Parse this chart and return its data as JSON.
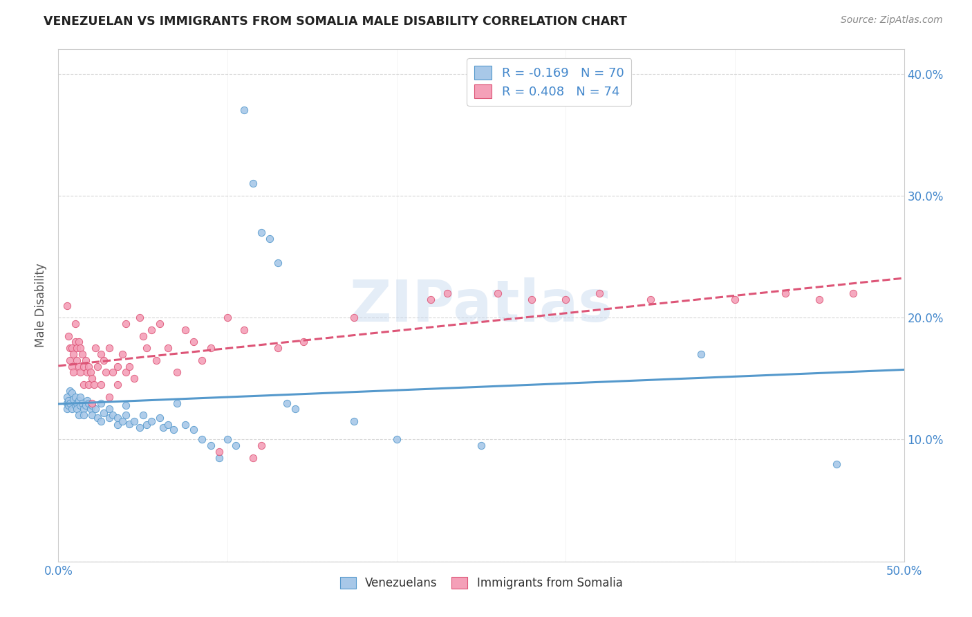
{
  "title": "VENEZUELAN VS IMMIGRANTS FROM SOMALIA MALE DISABILITY CORRELATION CHART",
  "source": "Source: ZipAtlas.com",
  "ylabel": "Male Disability",
  "x_min": 0.0,
  "x_max": 0.5,
  "y_min": 0.0,
  "y_max": 0.42,
  "x_ticks": [
    0.0,
    0.1,
    0.2,
    0.3,
    0.4,
    0.5
  ],
  "x_tick_labels": [
    "0.0%",
    "",
    "",
    "",
    "",
    "50.0%"
  ],
  "y_ticks": [
    0.0,
    0.1,
    0.2,
    0.3,
    0.4
  ],
  "y_tick_labels_right": [
    "",
    "10.0%",
    "20.0%",
    "30.0%",
    "40.0%"
  ],
  "venezuelan_color": "#a8c8e8",
  "somalia_color": "#f4a0b8",
  "venezuelan_edge_color": "#5599cc",
  "somalia_edge_color": "#dd5577",
  "venezuelan_line_color": "#5599cc",
  "somalia_line_color": "#dd5577",
  "R_venezuelan": -0.169,
  "N_venezuelan": 70,
  "R_somalia": 0.408,
  "N_somalia": 74,
  "watermark": "ZIPatlas",
  "legend_text_color": "#4488cc",
  "venezuelan_points": [
    [
      0.005,
      0.135
    ],
    [
      0.005,
      0.13
    ],
    [
      0.005,
      0.125
    ],
    [
      0.006,
      0.132
    ],
    [
      0.006,
      0.128
    ],
    [
      0.007,
      0.14
    ],
    [
      0.007,
      0.13
    ],
    [
      0.008,
      0.138
    ],
    [
      0.008,
      0.125
    ],
    [
      0.009,
      0.133
    ],
    [
      0.01,
      0.128
    ],
    [
      0.01,
      0.135
    ],
    [
      0.011,
      0.13
    ],
    [
      0.011,
      0.125
    ],
    [
      0.012,
      0.132
    ],
    [
      0.012,
      0.12
    ],
    [
      0.013,
      0.135
    ],
    [
      0.013,
      0.128
    ],
    [
      0.014,
      0.13
    ],
    [
      0.015,
      0.125
    ],
    [
      0.015,
      0.12
    ],
    [
      0.016,
      0.128
    ],
    [
      0.017,
      0.132
    ],
    [
      0.018,
      0.13
    ],
    [
      0.019,
      0.125
    ],
    [
      0.02,
      0.128
    ],
    [
      0.02,
      0.12
    ],
    [
      0.022,
      0.125
    ],
    [
      0.023,
      0.118
    ],
    [
      0.025,
      0.13
    ],
    [
      0.025,
      0.115
    ],
    [
      0.027,
      0.122
    ],
    [
      0.03,
      0.125
    ],
    [
      0.03,
      0.118
    ],
    [
      0.032,
      0.12
    ],
    [
      0.035,
      0.118
    ],
    [
      0.035,
      0.112
    ],
    [
      0.038,
      0.115
    ],
    [
      0.04,
      0.128
    ],
    [
      0.04,
      0.12
    ],
    [
      0.042,
      0.113
    ],
    [
      0.045,
      0.115
    ],
    [
      0.048,
      0.11
    ],
    [
      0.05,
      0.12
    ],
    [
      0.052,
      0.112
    ],
    [
      0.055,
      0.115
    ],
    [
      0.06,
      0.118
    ],
    [
      0.062,
      0.11
    ],
    [
      0.065,
      0.112
    ],
    [
      0.068,
      0.108
    ],
    [
      0.07,
      0.13
    ],
    [
      0.075,
      0.112
    ],
    [
      0.08,
      0.108
    ],
    [
      0.085,
      0.1
    ],
    [
      0.09,
      0.095
    ],
    [
      0.095,
      0.085
    ],
    [
      0.1,
      0.1
    ],
    [
      0.105,
      0.095
    ],
    [
      0.11,
      0.37
    ],
    [
      0.115,
      0.31
    ],
    [
      0.12,
      0.27
    ],
    [
      0.125,
      0.265
    ],
    [
      0.13,
      0.245
    ],
    [
      0.135,
      0.13
    ],
    [
      0.14,
      0.125
    ],
    [
      0.175,
      0.115
    ],
    [
      0.2,
      0.1
    ],
    [
      0.25,
      0.095
    ],
    [
      0.38,
      0.17
    ],
    [
      0.46,
      0.08
    ]
  ],
  "somalia_points": [
    [
      0.005,
      0.21
    ],
    [
      0.006,
      0.185
    ],
    [
      0.007,
      0.175
    ],
    [
      0.007,
      0.165
    ],
    [
      0.008,
      0.175
    ],
    [
      0.008,
      0.16
    ],
    [
      0.009,
      0.17
    ],
    [
      0.009,
      0.155
    ],
    [
      0.01,
      0.195
    ],
    [
      0.01,
      0.18
    ],
    [
      0.011,
      0.175
    ],
    [
      0.011,
      0.165
    ],
    [
      0.012,
      0.18
    ],
    [
      0.012,
      0.16
    ],
    [
      0.013,
      0.175
    ],
    [
      0.013,
      0.155
    ],
    [
      0.014,
      0.17
    ],
    [
      0.015,
      0.16
    ],
    [
      0.015,
      0.145
    ],
    [
      0.016,
      0.165
    ],
    [
      0.017,
      0.155
    ],
    [
      0.018,
      0.16
    ],
    [
      0.018,
      0.145
    ],
    [
      0.019,
      0.155
    ],
    [
      0.02,
      0.15
    ],
    [
      0.02,
      0.13
    ],
    [
      0.021,
      0.145
    ],
    [
      0.022,
      0.175
    ],
    [
      0.023,
      0.16
    ],
    [
      0.025,
      0.17
    ],
    [
      0.025,
      0.145
    ],
    [
      0.027,
      0.165
    ],
    [
      0.028,
      0.155
    ],
    [
      0.03,
      0.175
    ],
    [
      0.03,
      0.135
    ],
    [
      0.032,
      0.155
    ],
    [
      0.035,
      0.16
    ],
    [
      0.035,
      0.145
    ],
    [
      0.038,
      0.17
    ],
    [
      0.04,
      0.155
    ],
    [
      0.04,
      0.195
    ],
    [
      0.042,
      0.16
    ],
    [
      0.045,
      0.15
    ],
    [
      0.048,
      0.2
    ],
    [
      0.05,
      0.185
    ],
    [
      0.052,
      0.175
    ],
    [
      0.055,
      0.19
    ],
    [
      0.058,
      0.165
    ],
    [
      0.06,
      0.195
    ],
    [
      0.065,
      0.175
    ],
    [
      0.07,
      0.155
    ],
    [
      0.075,
      0.19
    ],
    [
      0.08,
      0.18
    ],
    [
      0.085,
      0.165
    ],
    [
      0.09,
      0.175
    ],
    [
      0.095,
      0.09
    ],
    [
      0.1,
      0.2
    ],
    [
      0.11,
      0.19
    ],
    [
      0.115,
      0.085
    ],
    [
      0.12,
      0.095
    ],
    [
      0.13,
      0.175
    ],
    [
      0.145,
      0.18
    ],
    [
      0.175,
      0.2
    ],
    [
      0.22,
      0.215
    ],
    [
      0.23,
      0.22
    ],
    [
      0.26,
      0.22
    ],
    [
      0.28,
      0.215
    ],
    [
      0.3,
      0.215
    ],
    [
      0.32,
      0.22
    ],
    [
      0.35,
      0.215
    ],
    [
      0.4,
      0.215
    ],
    [
      0.43,
      0.22
    ],
    [
      0.45,
      0.215
    ],
    [
      0.47,
      0.22
    ]
  ]
}
